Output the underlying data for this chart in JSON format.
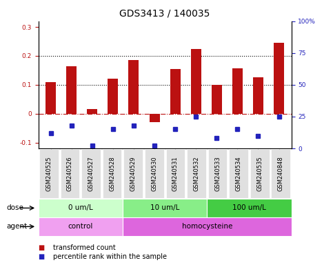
{
  "title": "GDS3413 / 140035",
  "samples": [
    "GSM240525",
    "GSM240526",
    "GSM240527",
    "GSM240528",
    "GSM240529",
    "GSM240530",
    "GSM240531",
    "GSM240532",
    "GSM240533",
    "GSM240534",
    "GSM240535",
    "GSM240848"
  ],
  "red_values": [
    0.11,
    0.165,
    0.015,
    0.122,
    0.185,
    -0.03,
    0.155,
    0.225,
    0.1,
    0.158,
    0.125,
    0.245
  ],
  "blue_values_pct": [
    12,
    18,
    2,
    15,
    18,
    2,
    15,
    25,
    8,
    15,
    10,
    25
  ],
  "ylim_left": [
    -0.12,
    0.32
  ],
  "ylim_right": [
    0,
    100
  ],
  "yticks_left": [
    -0.1,
    0.0,
    0.1,
    0.2,
    0.3
  ],
  "yticks_right": [
    0,
    25,
    50,
    75,
    100
  ],
  "hlines": [
    0.1,
    0.2
  ],
  "dose_groups": [
    {
      "label": "0 um/L",
      "start": 0,
      "end": 4,
      "color": "#ccffcc"
    },
    {
      "label": "10 um/L",
      "start": 4,
      "end": 8,
      "color": "#88ee88"
    },
    {
      "label": "100 um/L",
      "start": 8,
      "end": 12,
      "color": "#44cc44"
    }
  ],
  "agent_groups": [
    {
      "label": "control",
      "start": 0,
      "end": 4,
      "color": "#f0a0f0"
    },
    {
      "label": "homocysteine",
      "start": 4,
      "end": 12,
      "color": "#dd66dd"
    }
  ],
  "bar_color": "#bb1111",
  "dot_color": "#2222bb",
  "bg_color": "#e0e0e0",
  "title_fontsize": 10,
  "tick_fontsize": 6.5,
  "label_fontsize": 7.5,
  "legend_fontsize": 7
}
